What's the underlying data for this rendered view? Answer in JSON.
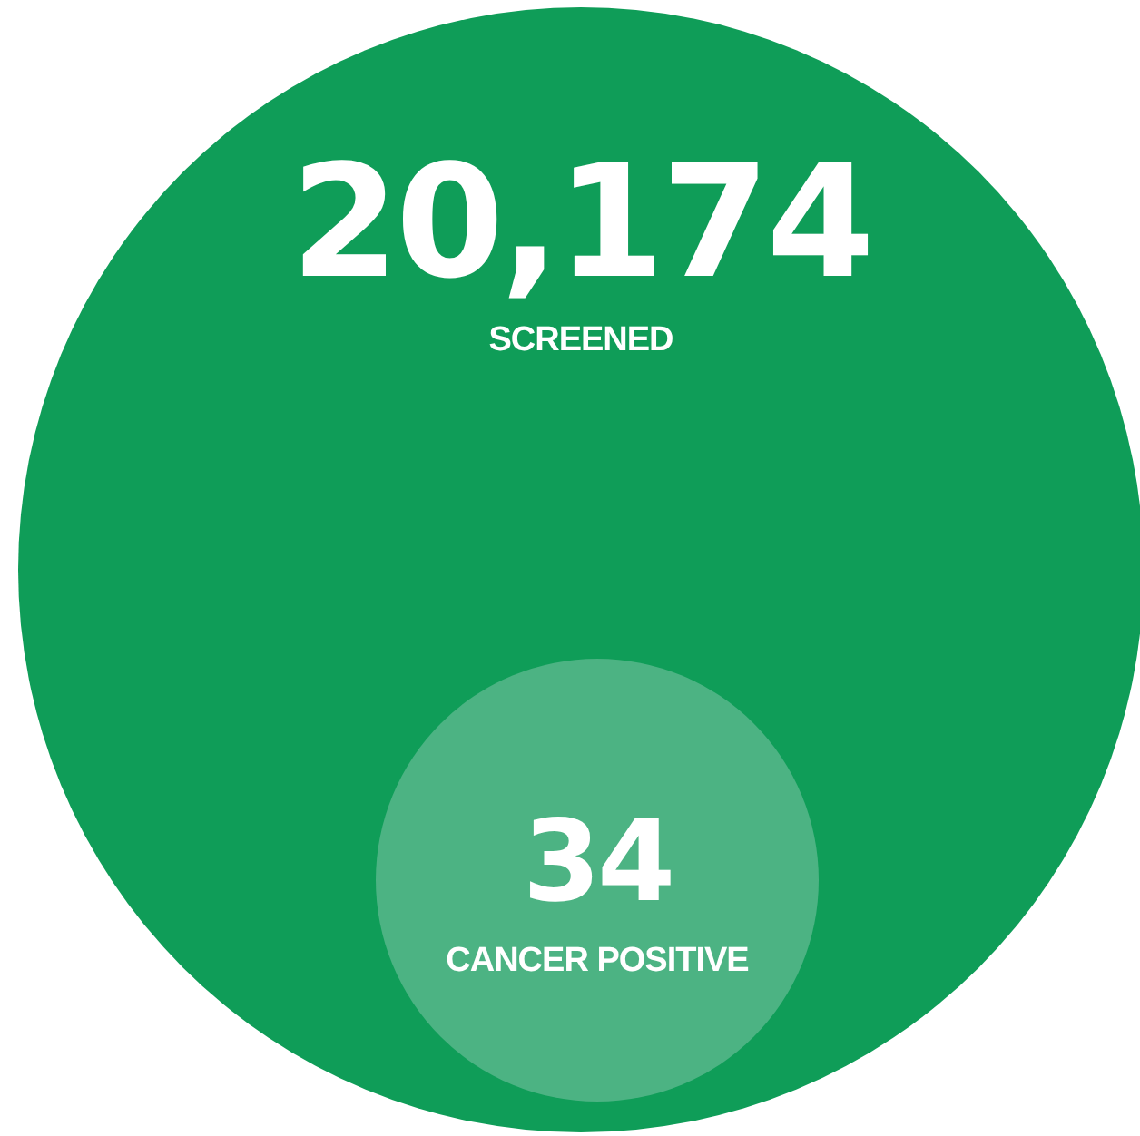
{
  "chart_data": {
    "type": "other",
    "categories": [
      "SCREENED",
      "CANCER POSITIVE"
    ],
    "values": [
      20174,
      34
    ],
    "value_labels": [
      "20,174",
      "34"
    ],
    "colors": [
      "#0f9d58",
      "#4cb383"
    ]
  }
}
